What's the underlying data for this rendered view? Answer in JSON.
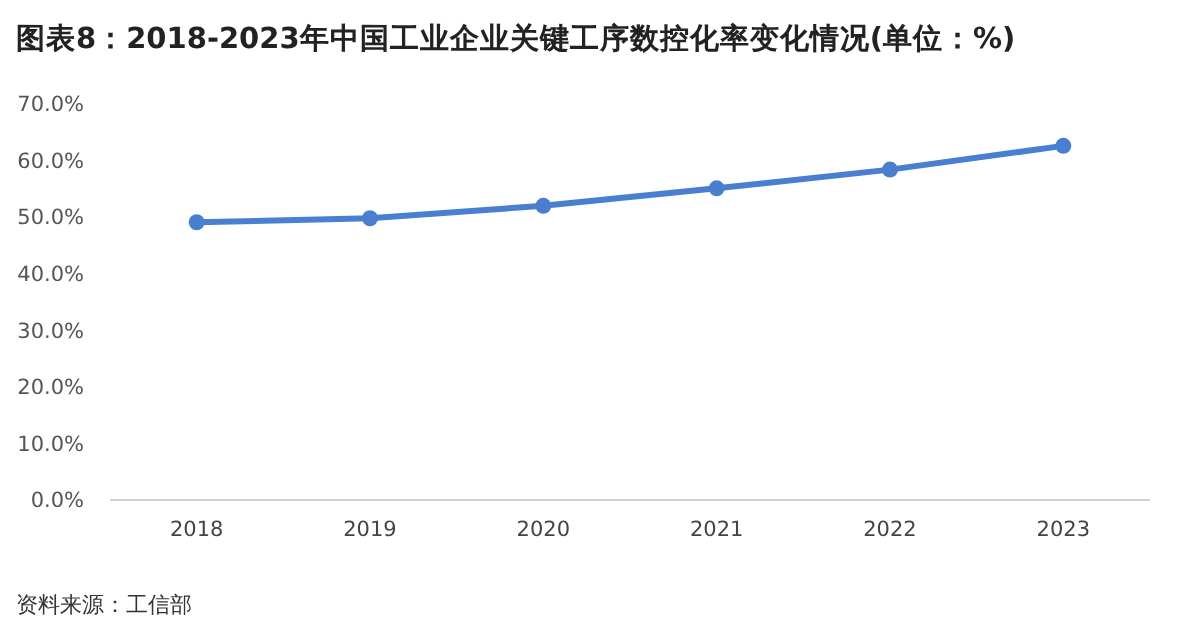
{
  "chart_data": {
    "type": "line",
    "title": "图表8：2018-2023年中国工业企业关键工序数控化率变化情况(单位：%)",
    "categories": [
      "2018",
      "2019",
      "2020",
      "2021",
      "2022",
      "2023"
    ],
    "series": [
      {
        "color": "#4a7fd0",
        "values": [
          49.1,
          49.8,
          52.0,
          55.1,
          58.4,
          62.6
        ]
      }
    ],
    "ylim": [
      0,
      70
    ],
    "yticks": [
      {
        "value": 0,
        "label": "0.0%"
      },
      {
        "value": 10,
        "label": "10.0%"
      },
      {
        "value": 20,
        "label": "20.0%"
      },
      {
        "value": 30,
        "label": "30.0%"
      },
      {
        "value": 40,
        "label": "40.0%"
      },
      {
        "value": 50,
        "label": "50.0%"
      },
      {
        "value": 60,
        "label": "60.0%"
      },
      {
        "value": 70,
        "label": "70.0%"
      }
    ],
    "marker": "circle",
    "line_style": "solid",
    "grid": false,
    "annotations": [
      "资料来源：工信部"
    ]
  }
}
